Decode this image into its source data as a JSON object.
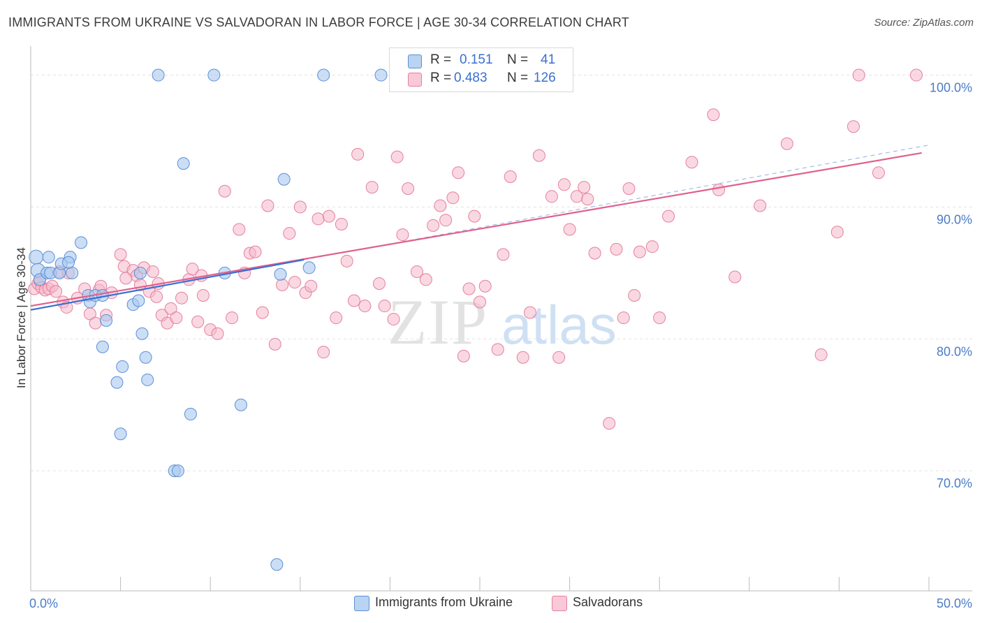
{
  "title": "IMMIGRANTS FROM UKRAINE VS SALVADORAN IN LABOR FORCE | AGE 30-34 CORRELATION CHART",
  "source": "Source: ZipAtlas.com",
  "watermark": {
    "zip": "ZIP",
    "atlas": "atlas"
  },
  "legend": {
    "rows": [
      {
        "r_label": "R =",
        "r_value": "0.151",
        "n_label": "N =",
        "n_value": "41"
      },
      {
        "r_label": "R =",
        "r_value": "0.483",
        "n_label": "N =",
        "n_value": "126"
      }
    ]
  },
  "colors": {
    "ukraine_fill": "#a9c8ef",
    "ukraine_stroke": "#5b8fd6",
    "ukraine_line": "#3a6fd0",
    "salvador_fill": "#f6b8ca",
    "salvador_stroke": "#e57fa0",
    "salvador_line": "#e0608c",
    "tick_text": "#4a7cc7",
    "grid": "#e3e3e3"
  },
  "chart_data": {
    "type": "scatter",
    "title": "IMMIGRANTS FROM UKRAINE VS SALVADORAN IN LABOR FORCE | AGE 30-34 CORRELATION CHART",
    "xlabel": "",
    "ylabel": "In Labor Force | Age 30-34",
    "xlim": [
      0,
      50
    ],
    "ylim": [
      60.9,
      102.2
    ],
    "x_tick_labels": [
      "0.0%",
      "50.0%"
    ],
    "y_ticks": [
      70,
      80,
      90,
      100
    ],
    "y_tick_labels": [
      "70.0%",
      "80.0%",
      "90.0%",
      "100.0%"
    ],
    "grid": true,
    "legend_position": "bottom",
    "series": [
      {
        "name": "Immigrants from Ukraine",
        "r": 0.151,
        "n": 41,
        "trend": {
          "x0": 0,
          "y0": 82.2,
          "x1": 15.2,
          "y1": 86.0,
          "dashed_extension_to": [
            50,
            94.7
          ]
        },
        "points": [
          [
            0.3,
            86.2
          ],
          [
            0.4,
            85.2
          ],
          [
            0.5,
            84.5
          ],
          [
            0.9,
            85.0
          ],
          [
            1.0,
            86.2
          ],
          [
            1.1,
            85.0
          ],
          [
            1.6,
            85.0
          ],
          [
            1.7,
            85.7
          ],
          [
            2.2,
            86.2
          ],
          [
            2.3,
            85.0
          ],
          [
            2.8,
            87.3
          ],
          [
            3.2,
            83.3
          ],
          [
            3.3,
            82.8
          ],
          [
            3.6,
            83.3
          ],
          [
            4.0,
            79.4
          ],
          [
            4.2,
            81.4
          ],
          [
            4.8,
            76.7
          ],
          [
            5.0,
            72.8
          ],
          [
            5.1,
            77.9
          ],
          [
            5.7,
            82.6
          ],
          [
            6.0,
            82.9
          ],
          [
            6.2,
            80.4
          ],
          [
            6.4,
            78.6
          ],
          [
            6.5,
            76.9
          ],
          [
            7.1,
            100.0
          ],
          [
            8.0,
            70.0
          ],
          [
            8.2,
            70.0
          ],
          [
            8.5,
            93.3
          ],
          [
            8.9,
            74.3
          ],
          [
            10.2,
            100.0
          ],
          [
            10.8,
            85.0
          ],
          [
            11.7,
            75.0
          ],
          [
            13.7,
            62.9
          ],
          [
            13.9,
            84.9
          ],
          [
            14.1,
            92.1
          ],
          [
            15.5,
            85.4
          ],
          [
            16.3,
            100.0
          ],
          [
            19.5,
            100.0
          ],
          [
            2.1,
            85.8
          ],
          [
            6.1,
            85.0
          ],
          [
            4.0,
            83.3
          ]
        ]
      },
      {
        "name": "Salvadorans",
        "r": 0.483,
        "n": 126,
        "trend": {
          "x0": 0,
          "y0": 82.5,
          "x1": 49.6,
          "y1": 94.1
        },
        "points": [
          [
            0.2,
            83.8
          ],
          [
            0.4,
            84.2
          ],
          [
            0.5,
            84.4
          ],
          [
            0.6,
            83.9
          ],
          [
            0.8,
            83.7
          ],
          [
            1.0,
            83.8
          ],
          [
            1.2,
            84.0
          ],
          [
            1.4,
            83.6
          ],
          [
            1.6,
            85.1
          ],
          [
            1.8,
            82.8
          ],
          [
            2.0,
            82.4
          ],
          [
            2.1,
            85.0
          ],
          [
            2.6,
            83.1
          ],
          [
            3.0,
            83.8
          ],
          [
            3.3,
            81.9
          ],
          [
            3.6,
            81.2
          ],
          [
            3.8,
            83.7
          ],
          [
            4.2,
            81.8
          ],
          [
            4.5,
            83.5
          ],
          [
            5.0,
            86.4
          ],
          [
            5.2,
            85.5
          ],
          [
            5.3,
            84.6
          ],
          [
            5.7,
            85.2
          ],
          [
            5.9,
            84.8
          ],
          [
            6.1,
            84.1
          ],
          [
            6.3,
            85.4
          ],
          [
            6.6,
            83.6
          ],
          [
            6.8,
            85.1
          ],
          [
            7.0,
            83.2
          ],
          [
            7.3,
            81.8
          ],
          [
            7.6,
            81.2
          ],
          [
            7.8,
            82.3
          ],
          [
            8.1,
            81.6
          ],
          [
            8.4,
            83.1
          ],
          [
            8.8,
            84.5
          ],
          [
            9.0,
            85.3
          ],
          [
            9.3,
            81.3
          ],
          [
            9.6,
            83.3
          ],
          [
            10.0,
            80.7
          ],
          [
            10.4,
            80.4
          ],
          [
            10.8,
            91.2
          ],
          [
            11.2,
            81.6
          ],
          [
            11.6,
            88.3
          ],
          [
            11.9,
            85.0
          ],
          [
            12.2,
            86.5
          ],
          [
            12.5,
            86.6
          ],
          [
            12.9,
            82.0
          ],
          [
            13.2,
            90.1
          ],
          [
            13.6,
            79.6
          ],
          [
            14.0,
            84.1
          ],
          [
            14.4,
            88.0
          ],
          [
            14.7,
            84.3
          ],
          [
            15.0,
            90.0
          ],
          [
            15.3,
            83.5
          ],
          [
            15.6,
            84.0
          ],
          [
            16.0,
            89.1
          ],
          [
            16.3,
            79.0
          ],
          [
            16.6,
            89.3
          ],
          [
            17.0,
            81.6
          ],
          [
            17.3,
            88.7
          ],
          [
            17.6,
            85.9
          ],
          [
            18.0,
            82.9
          ],
          [
            18.2,
            94.0
          ],
          [
            18.6,
            82.5
          ],
          [
            19.0,
            91.5
          ],
          [
            19.4,
            84.2
          ],
          [
            19.7,
            82.5
          ],
          [
            20.2,
            81.5
          ],
          [
            20.4,
            93.8
          ],
          [
            20.7,
            87.9
          ],
          [
            21.0,
            91.4
          ],
          [
            21.5,
            85.1
          ],
          [
            22.0,
            84.5
          ],
          [
            22.4,
            88.6
          ],
          [
            22.8,
            90.1
          ],
          [
            23.1,
            89.0
          ],
          [
            23.5,
            90.7
          ],
          [
            23.8,
            92.6
          ],
          [
            24.1,
            78.7
          ],
          [
            24.4,
            83.8
          ],
          [
            24.7,
            89.3
          ],
          [
            25.0,
            82.8
          ],
          [
            25.3,
            84.0
          ],
          [
            26.0,
            79.2
          ],
          [
            26.3,
            86.4
          ],
          [
            26.7,
            92.3
          ],
          [
            27.4,
            78.6
          ],
          [
            27.8,
            82.0
          ],
          [
            28.3,
            93.9
          ],
          [
            29.0,
            90.8
          ],
          [
            29.4,
            78.6
          ],
          [
            29.7,
            91.7
          ],
          [
            30.0,
            88.3
          ],
          [
            30.4,
            90.8
          ],
          [
            30.8,
            91.5
          ],
          [
            31.0,
            90.6
          ],
          [
            31.4,
            86.5
          ],
          [
            32.2,
            73.6
          ],
          [
            32.6,
            86.8
          ],
          [
            33.0,
            81.6
          ],
          [
            33.3,
            91.4
          ],
          [
            33.6,
            83.3
          ],
          [
            33.9,
            86.6
          ],
          [
            34.6,
            87.0
          ],
          [
            35.0,
            81.6
          ],
          [
            35.5,
            89.3
          ],
          [
            36.8,
            93.4
          ],
          [
            38.0,
            97.0
          ],
          [
            38.3,
            91.3
          ],
          [
            39.2,
            84.7
          ],
          [
            40.6,
            90.1
          ],
          [
            42.1,
            94.8
          ],
          [
            44.0,
            78.8
          ],
          [
            44.9,
            88.1
          ],
          [
            45.8,
            96.1
          ],
          [
            46.1,
            100.0
          ],
          [
            47.2,
            92.6
          ],
          [
            49.3,
            100.0
          ],
          [
            3.9,
            84.0
          ],
          [
            7.1,
            84.2
          ],
          [
            9.5,
            84.8
          ]
        ]
      }
    ]
  }
}
